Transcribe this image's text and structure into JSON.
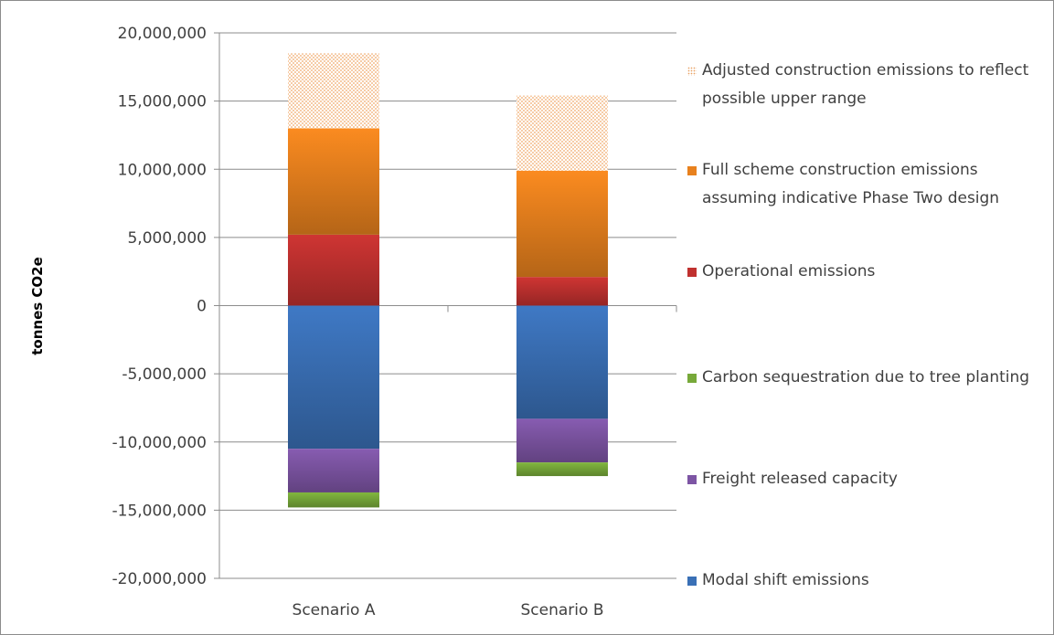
{
  "chart_data": {
    "type": "bar",
    "stacked": true,
    "title": "",
    "xlabel": "",
    "ylabel": "tonnes CO2e",
    "ylim": [
      -20000000,
      20000000
    ],
    "ytick_step": 5000000,
    "yticks": [
      "20,000,000",
      "15,000,000",
      "10,000,000",
      "5,000,000",
      "0",
      "-5,000,000",
      "-10,000,000",
      "-15,000,000",
      "-20,000,000"
    ],
    "categories": [
      "Scenario A",
      "Scenario B"
    ],
    "grid": "horizontal",
    "legend_position": "right",
    "series": [
      {
        "name": "Adjusted construction emissions to reflect possible upper range",
        "color": "#f5c69a",
        "pattern": "dots",
        "values": [
          5500000,
          5500000
        ]
      },
      {
        "name": "Full scheme construction emissions assuming indicative Phase Two design",
        "color": "#e8811e",
        "values": [
          7800000,
          7800000
        ]
      },
      {
        "name": "Operational emissions",
        "color": "#c0312f",
        "values": [
          5200000,
          2100000
        ]
      },
      {
        "name": "Carbon sequestration due to tree planting",
        "color": "#77a93a",
        "values": [
          -1100000,
          -1000000
        ]
      },
      {
        "name": "Freight released capacity",
        "color": "#7d55a4",
        "values": [
          -3200000,
          -3200000
        ]
      },
      {
        "name": "Modal shift emissions",
        "color": "#3a70b6",
        "values": [
          -10500000,
          -8300000
        ]
      }
    ]
  }
}
